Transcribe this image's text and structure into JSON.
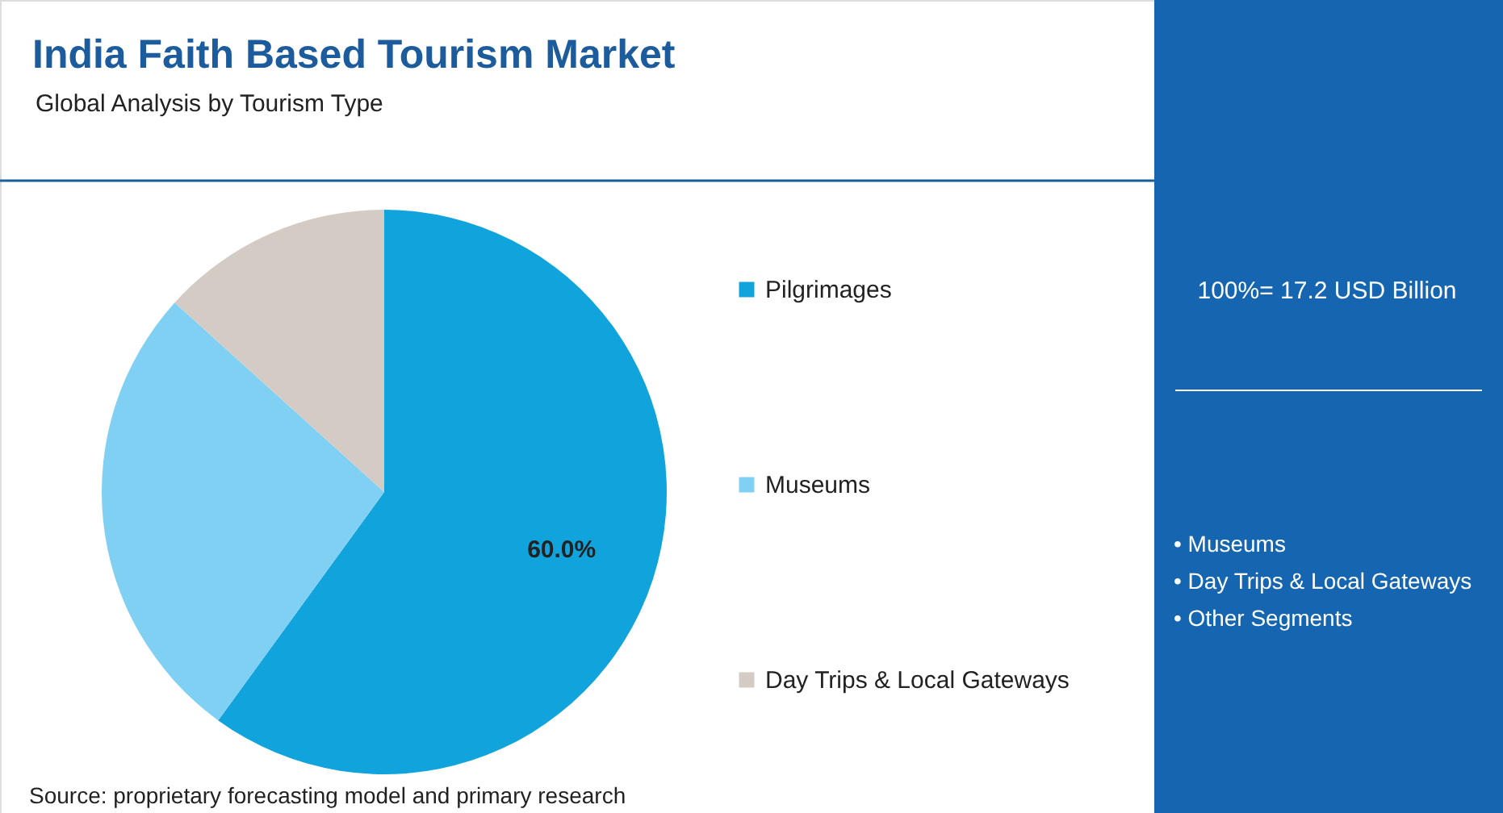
{
  "chart_data": {
    "type": "pie",
    "title": "India Faith Based Tourism Market",
    "subtitle": "Global Analysis by Tourism Type",
    "categories": [
      "Pilgrimages",
      "Museums",
      "Day Trips & Local Gateways"
    ],
    "values": [
      60.0,
      26.7,
      13.3
    ],
    "colors": [
      "#10a3dc",
      "#7fd0f2",
      "#d5cbc5"
    ],
    "value_labels": [
      "60.0%",
      null,
      null
    ],
    "legend": "right",
    "annotations": [
      "Source: proprietary forecasting model and primary research",
      "100%= 17.2 USD Billion",
      "• Museums",
      "• Day Trips & Local Gateways",
      "• Other Segments"
    ]
  }
}
